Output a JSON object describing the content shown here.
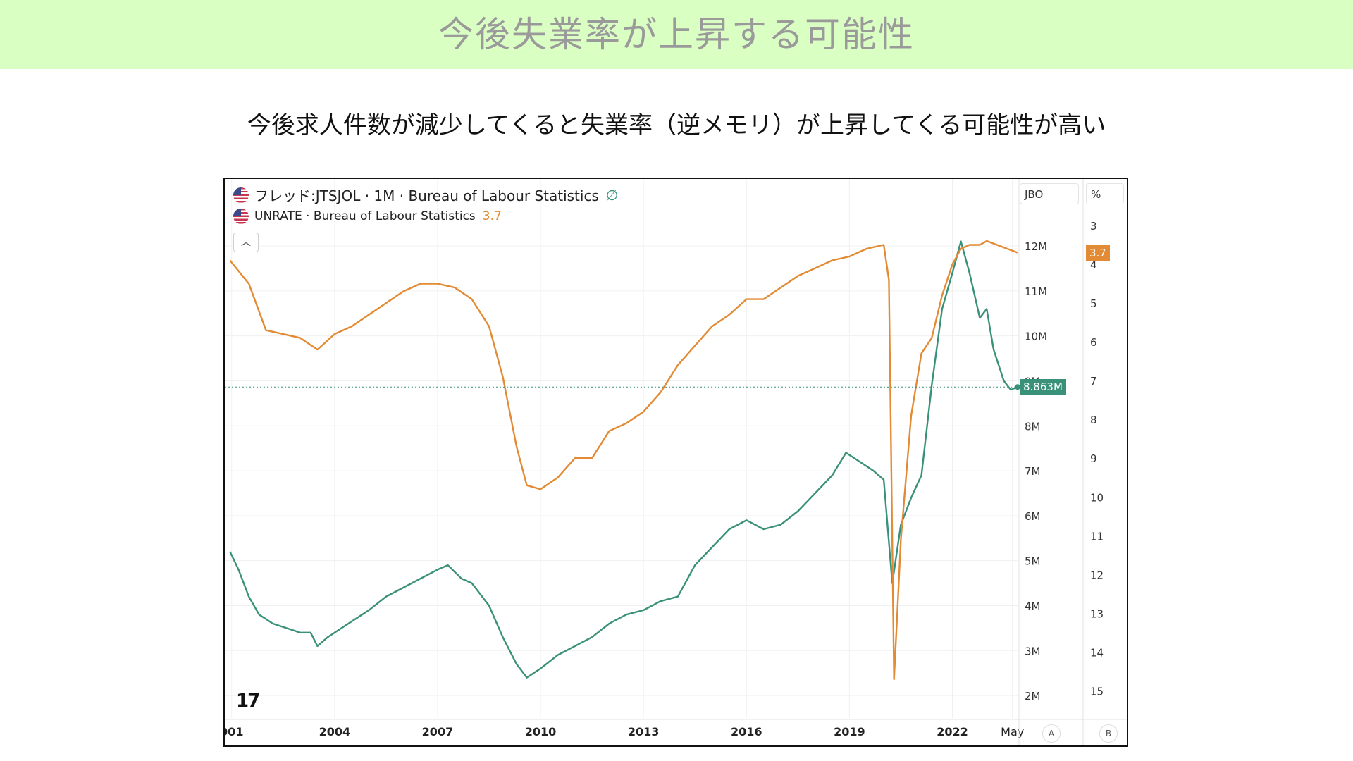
{
  "header": {
    "title": "今後失業率が上昇する可能性",
    "subtitle": "今後求人件数が減少してくると失業率（逆メモリ）が上昇してくる可能性が高い"
  },
  "chart_data": {
    "type": "line",
    "legend": [
      {
        "label": "フレッド:JTSJOL · 1M · Bureau of Labour Statistics",
        "extra": "∅",
        "color": "#3a9179"
      },
      {
        "label": "UNRATE · Bureau of Labour Statistics",
        "extra": "3.7",
        "color": "#e38b34"
      }
    ],
    "x_ticks": [
      "001",
      "2004",
      "2007",
      "2010",
      "2013",
      "2016",
      "2019",
      "2022",
      "May"
    ],
    "x_range": [
      2000.8,
      2023.9
    ],
    "left_axis": {
      "title": "JBO",
      "ticks": [
        "12M",
        "11M",
        "10M",
        "9M",
        "8M",
        "7M",
        "6M",
        "5M",
        "4M",
        "3M",
        "2M"
      ],
      "range": [
        1.5,
        12.8
      ]
    },
    "right_axis": {
      "title": "%",
      "ticks": [
        "3",
        "4",
        "5",
        "6",
        "7",
        "8",
        "9",
        "10",
        "11",
        "12",
        "13",
        "14",
        "15"
      ],
      "range": [
        2.6,
        15.7
      ],
      "inverted": true
    },
    "last_values": {
      "jtsjol": "8.863M",
      "unrate": "3.7"
    },
    "scale_buttons": [
      "A",
      "B"
    ],
    "series": [
      {
        "name": "フレッド:JTSJOL",
        "color": "#3a9179",
        "axis": "left",
        "points": [
          [
            2000.95,
            5.2
          ],
          [
            2001.2,
            4.8
          ],
          [
            2001.5,
            4.2
          ],
          [
            2001.8,
            3.8
          ],
          [
            2002.2,
            3.6
          ],
          [
            2002.6,
            3.5
          ],
          [
            2003.0,
            3.4
          ],
          [
            2003.3,
            3.4
          ],
          [
            2003.5,
            3.1
          ],
          [
            2003.8,
            3.3
          ],
          [
            2004.2,
            3.5
          ],
          [
            2004.6,
            3.7
          ],
          [
            2005.0,
            3.9
          ],
          [
            2005.5,
            4.2
          ],
          [
            2006.0,
            4.4
          ],
          [
            2006.5,
            4.6
          ],
          [
            2007.0,
            4.8
          ],
          [
            2007.3,
            4.9
          ],
          [
            2007.7,
            4.6
          ],
          [
            2008.0,
            4.5
          ],
          [
            2008.5,
            4.0
          ],
          [
            2008.9,
            3.3
          ],
          [
            2009.3,
            2.7
          ],
          [
            2009.6,
            2.4
          ],
          [
            2010.0,
            2.6
          ],
          [
            2010.5,
            2.9
          ],
          [
            2011.0,
            3.1
          ],
          [
            2011.5,
            3.3
          ],
          [
            2012.0,
            3.6
          ],
          [
            2012.5,
            3.8
          ],
          [
            2013.0,
            3.9
          ],
          [
            2013.5,
            4.1
          ],
          [
            2014.0,
            4.2
          ],
          [
            2014.5,
            4.9
          ],
          [
            2015.0,
            5.3
          ],
          [
            2015.5,
            5.7
          ],
          [
            2016.0,
            5.9
          ],
          [
            2016.5,
            5.7
          ],
          [
            2017.0,
            5.8
          ],
          [
            2017.5,
            6.1
          ],
          [
            2018.0,
            6.5
          ],
          [
            2018.5,
            6.9
          ],
          [
            2018.9,
            7.4
          ],
          [
            2019.3,
            7.2
          ],
          [
            2019.7,
            7.0
          ],
          [
            2020.0,
            6.8
          ],
          [
            2020.25,
            4.5
          ],
          [
            2020.5,
            5.8
          ],
          [
            2020.8,
            6.4
          ],
          [
            2021.1,
            6.9
          ],
          [
            2021.4,
            8.9
          ],
          [
            2021.7,
            10.6
          ],
          [
            2022.0,
            11.4
          ],
          [
            2022.25,
            12.1
          ],
          [
            2022.5,
            11.4
          ],
          [
            2022.8,
            10.4
          ],
          [
            2023.0,
            10.6
          ],
          [
            2023.2,
            9.7
          ],
          [
            2023.5,
            9.0
          ],
          [
            2023.7,
            8.8
          ],
          [
            2023.9,
            8.863
          ]
        ]
      },
      {
        "name": "UNRATE",
        "color": "#e38b34",
        "axis": "right",
        "points": [
          [
            2000.95,
            3.9
          ],
          [
            2001.5,
            4.5
          ],
          [
            2002.0,
            5.7
          ],
          [
            2002.5,
            5.8
          ],
          [
            2003.0,
            5.9
          ],
          [
            2003.5,
            6.2
          ],
          [
            2004.0,
            5.8
          ],
          [
            2004.5,
            5.6
          ],
          [
            2005.0,
            5.3
          ],
          [
            2005.5,
            5.0
          ],
          [
            2006.0,
            4.7
          ],
          [
            2006.5,
            4.5
          ],
          [
            2007.0,
            4.5
          ],
          [
            2007.5,
            4.6
          ],
          [
            2008.0,
            4.9
          ],
          [
            2008.5,
            5.6
          ],
          [
            2008.9,
            6.9
          ],
          [
            2009.3,
            8.7
          ],
          [
            2009.6,
            9.7
          ],
          [
            2010.0,
            9.8
          ],
          [
            2010.5,
            9.5
          ],
          [
            2011.0,
            9.0
          ],
          [
            2011.5,
            9.0
          ],
          [
            2012.0,
            8.3
          ],
          [
            2012.5,
            8.1
          ],
          [
            2013.0,
            7.8
          ],
          [
            2013.5,
            7.3
          ],
          [
            2014.0,
            6.6
          ],
          [
            2014.5,
            6.1
          ],
          [
            2015.0,
            5.6
          ],
          [
            2015.5,
            5.3
          ],
          [
            2016.0,
            4.9
          ],
          [
            2016.5,
            4.9
          ],
          [
            2017.0,
            4.6
          ],
          [
            2017.5,
            4.3
          ],
          [
            2018.0,
            4.1
          ],
          [
            2018.5,
            3.9
          ],
          [
            2019.0,
            3.8
          ],
          [
            2019.5,
            3.6
          ],
          [
            2020.0,
            3.5
          ],
          [
            2020.15,
            4.4
          ],
          [
            2020.3,
            14.7
          ],
          [
            2020.5,
            11.1
          ],
          [
            2020.8,
            7.9
          ],
          [
            2021.1,
            6.3
          ],
          [
            2021.4,
            5.9
          ],
          [
            2021.7,
            4.8
          ],
          [
            2022.0,
            4.0
          ],
          [
            2022.25,
            3.6
          ],
          [
            2022.5,
            3.5
          ],
          [
            2022.8,
            3.5
          ],
          [
            2023.0,
            3.4
          ],
          [
            2023.3,
            3.5
          ],
          [
            2023.6,
            3.6
          ],
          [
            2023.9,
            3.7
          ]
        ]
      }
    ]
  }
}
